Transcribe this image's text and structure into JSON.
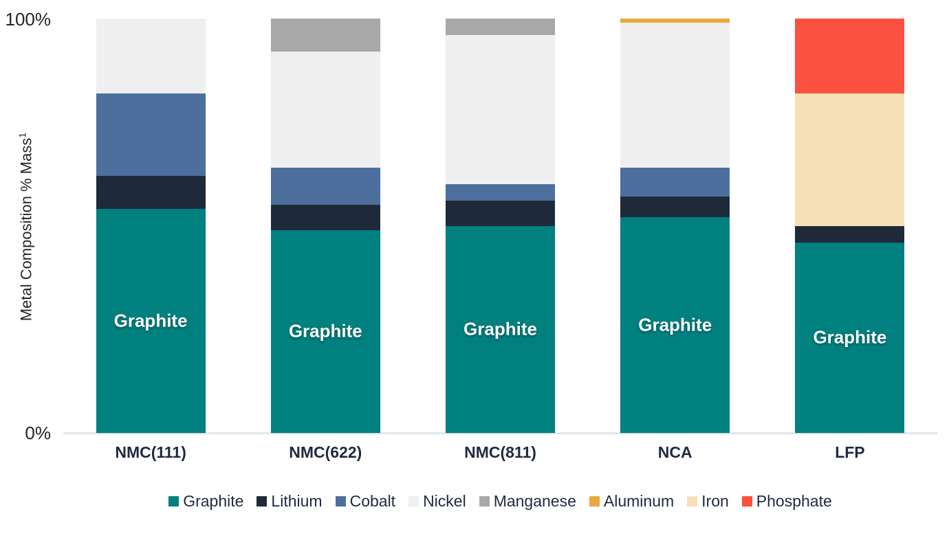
{
  "page": {
    "background": "#FFFFFF"
  },
  "chart_data": {
    "type": "bar",
    "stacked": true,
    "orientation": "vertical",
    "title": "",
    "ylabel": "Metal Composition % Mass",
    "ylabel_superscript": "1",
    "ylim": [
      0,
      100
    ],
    "y_tick_labels": {
      "top": "100%",
      "bottom": "0%"
    },
    "grid": false,
    "legend_position": "bottom",
    "categories": [
      "NMC(111)",
      "NMC(622)",
      "NMC(811)",
      "NCA",
      "LFP"
    ],
    "series": [
      {
        "name": "Graphite",
        "color": "#00807F",
        "values": [
          54,
          49,
          50,
          52,
          46
        ]
      },
      {
        "name": "Lithium",
        "color": "#1E2A3A",
        "values": [
          8,
          6,
          6,
          5,
          4
        ]
      },
      {
        "name": "Cobalt",
        "color": "#4C6F9D",
        "values": [
          20,
          9,
          4,
          7,
          0
        ]
      },
      {
        "name": "Nickel",
        "color": "#EFEFEF",
        "values": [
          18,
          28,
          36,
          35,
          0
        ]
      },
      {
        "name": "Manganese",
        "color": "#A8A8A8",
        "values": [
          0,
          8,
          4,
          0,
          0
        ]
      },
      {
        "name": "Aluminum",
        "color": "#EBA83C",
        "values": [
          0,
          0,
          0,
          1,
          0
        ]
      },
      {
        "name": "Iron",
        "color": "#F6E0B6",
        "values": [
          0,
          0,
          0,
          0,
          32
        ]
      },
      {
        "name": "Phosphate",
        "color": "#FB5140",
        "values": [
          0,
          0,
          0,
          0,
          18
        ]
      }
    ],
    "bar_inner_labels": {
      "series": "Graphite",
      "text": "Graphite"
    },
    "axis_colors": {
      "baseline": "#DFE6EC",
      "tick_text": "#212529",
      "category_text": "#1F2A40",
      "legend_text": "#1F2A40"
    }
  }
}
